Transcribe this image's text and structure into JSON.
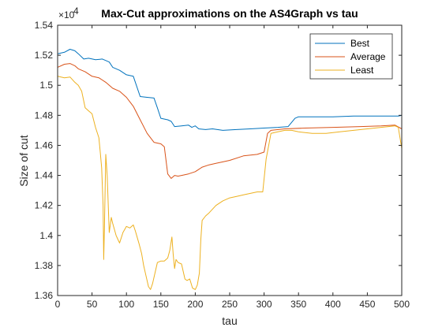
{
  "chart_data": {
    "type": "line",
    "title": "Max-Cut approximations on the AS4Graph vs tau",
    "xlabel": "tau",
    "ylabel": "Size of cut",
    "exponent_base": "×10",
    "exponent_power": "4",
    "xlim": [
      0,
      500
    ],
    "ylim": [
      13600,
      15400
    ],
    "xticks": [
      "0",
      "50",
      "100",
      "150",
      "200",
      "250",
      "300",
      "350",
      "400",
      "450",
      "500"
    ],
    "yticks": [
      "1.36",
      "1.38",
      "1.4",
      "1.42",
      "1.44",
      "1.46",
      "1.48",
      "1.5",
      "1.52",
      "1.54"
    ],
    "grid": false,
    "legend_position": "top-right",
    "series": [
      {
        "name": "Best",
        "color": "#0072BD",
        "points": [
          [
            0,
            15210
          ],
          [
            10,
            15220
          ],
          [
            18,
            15240
          ],
          [
            25,
            15230
          ],
          [
            30,
            15210
          ],
          [
            38,
            15175
          ],
          [
            45,
            15180
          ],
          [
            55,
            15170
          ],
          [
            65,
            15175
          ],
          [
            75,
            15155
          ],
          [
            80,
            15120
          ],
          [
            90,
            15100
          ],
          [
            100,
            15070
          ],
          [
            110,
            15060
          ],
          [
            120,
            14925
          ],
          [
            130,
            14920
          ],
          [
            140,
            14915
          ],
          [
            145,
            14850
          ],
          [
            150,
            14780
          ],
          [
            160,
            14770
          ],
          [
            165,
            14760
          ],
          [
            170,
            14725
          ],
          [
            180,
            14730
          ],
          [
            190,
            14735
          ],
          [
            195,
            14720
          ],
          [
            200,
            14730
          ],
          [
            205,
            14710
          ],
          [
            215,
            14705
          ],
          [
            225,
            14710
          ],
          [
            240,
            14700
          ],
          [
            260,
            14705
          ],
          [
            280,
            14710
          ],
          [
            300,
            14715
          ],
          [
            320,
            14720
          ],
          [
            335,
            14725
          ],
          [
            345,
            14780
          ],
          [
            350,
            14790
          ],
          [
            370,
            14790
          ],
          [
            400,
            14790
          ],
          [
            430,
            14795
          ],
          [
            460,
            14795
          ],
          [
            495,
            14795
          ],
          [
            500,
            14800
          ]
        ]
      },
      {
        "name": "Average",
        "color": "#D95319",
        "points": [
          [
            0,
            15120
          ],
          [
            10,
            15140
          ],
          [
            18,
            15145
          ],
          [
            25,
            15130
          ],
          [
            30,
            15110
          ],
          [
            40,
            15090
          ],
          [
            50,
            15060
          ],
          [
            60,
            15050
          ],
          [
            70,
            15020
          ],
          [
            80,
            14980
          ],
          [
            90,
            14960
          ],
          [
            100,
            14920
          ],
          [
            110,
            14860
          ],
          [
            120,
            14770
          ],
          [
            130,
            14680
          ],
          [
            140,
            14620
          ],
          [
            150,
            14610
          ],
          [
            155,
            14590
          ],
          [
            160,
            14410
          ],
          [
            165,
            14380
          ],
          [
            170,
            14400
          ],
          [
            175,
            14395
          ],
          [
            180,
            14400
          ],
          [
            190,
            14410
          ],
          [
            200,
            14425
          ],
          [
            205,
            14440
          ],
          [
            210,
            14455
          ],
          [
            220,
            14470
          ],
          [
            230,
            14480
          ],
          [
            250,
            14500
          ],
          [
            270,
            14530
          ],
          [
            290,
            14540
          ],
          [
            300,
            14555
          ],
          [
            305,
            14680
          ],
          [
            310,
            14700
          ],
          [
            330,
            14710
          ],
          [
            360,
            14715
          ],
          [
            400,
            14720
          ],
          [
            440,
            14725
          ],
          [
            470,
            14730
          ],
          [
            490,
            14735
          ],
          [
            500,
            14710
          ]
        ]
      },
      {
        "name": "Least",
        "color": "#EDB120",
        "points": [
          [
            0,
            15060
          ],
          [
            10,
            15050
          ],
          [
            18,
            15055
          ],
          [
            25,
            15020
          ],
          [
            30,
            15000
          ],
          [
            35,
            14960
          ],
          [
            40,
            14850
          ],
          [
            45,
            14830
          ],
          [
            50,
            14810
          ],
          [
            55,
            14720
          ],
          [
            60,
            14650
          ],
          [
            62,
            14550
          ],
          [
            64,
            14450
          ],
          [
            66,
            14200
          ],
          [
            67,
            13840
          ],
          [
            68,
            14050
          ],
          [
            70,
            14540
          ],
          [
            72,
            14400
          ],
          [
            75,
            14020
          ],
          [
            78,
            14120
          ],
          [
            80,
            14080
          ],
          [
            85,
            14000
          ],
          [
            88,
            13970
          ],
          [
            90,
            13950
          ],
          [
            95,
            14020
          ],
          [
            100,
            14060
          ],
          [
            105,
            14050
          ],
          [
            110,
            14070
          ],
          [
            113,
            14030
          ],
          [
            118,
            13950
          ],
          [
            122,
            13880
          ],
          [
            125,
            13800
          ],
          [
            128,
            13740
          ],
          [
            132,
            13660
          ],
          [
            135,
            13640
          ],
          [
            138,
            13680
          ],
          [
            142,
            13760
          ],
          [
            145,
            13820
          ],
          [
            150,
            13830
          ],
          [
            155,
            13830
          ],
          [
            160,
            13850
          ],
          [
            163,
            13900
          ],
          [
            166,
            13990
          ],
          [
            168,
            13870
          ],
          [
            170,
            13780
          ],
          [
            172,
            13840
          ],
          [
            175,
            13820
          ],
          [
            180,
            13810
          ],
          [
            185,
            13710
          ],
          [
            188,
            13700
          ],
          [
            192,
            13710
          ],
          [
            196,
            13650
          ],
          [
            200,
            13640
          ],
          [
            203,
            13670
          ],
          [
            206,
            13750
          ],
          [
            208,
            13970
          ],
          [
            210,
            14100
          ],
          [
            215,
            14130
          ],
          [
            220,
            14150
          ],
          [
            230,
            14200
          ],
          [
            240,
            14230
          ],
          [
            250,
            14250
          ],
          [
            260,
            14260
          ],
          [
            270,
            14270
          ],
          [
            280,
            14280
          ],
          [
            290,
            14290
          ],
          [
            298,
            14290
          ],
          [
            303,
            14510
          ],
          [
            310,
            14680
          ],
          [
            320,
            14690
          ],
          [
            330,
            14700
          ],
          [
            340,
            14700
          ],
          [
            350,
            14690
          ],
          [
            370,
            14680
          ],
          [
            390,
            14680
          ],
          [
            410,
            14690
          ],
          [
            430,
            14700
          ],
          [
            450,
            14710
          ],
          [
            470,
            14720
          ],
          [
            490,
            14730
          ],
          [
            495,
            14720
          ],
          [
            500,
            14580
          ]
        ]
      }
    ]
  }
}
